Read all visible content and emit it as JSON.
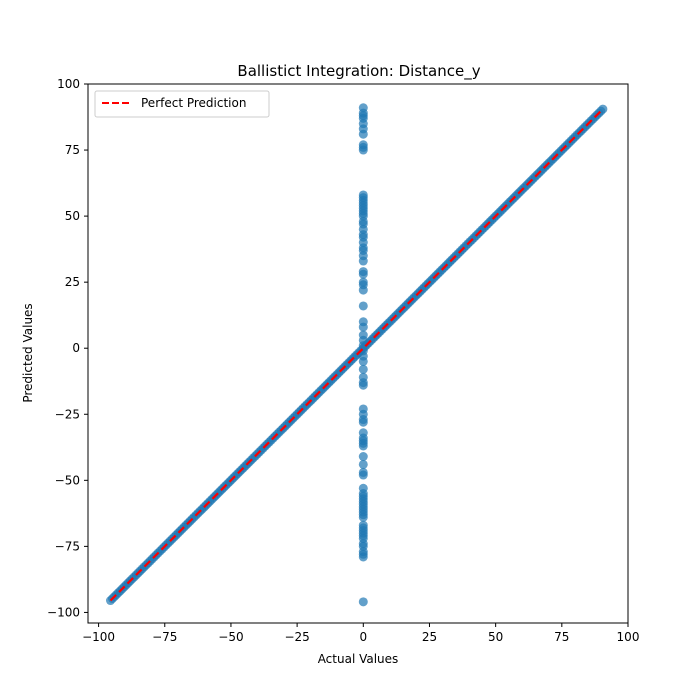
{
  "chart_data": {
    "type": "scatter",
    "title": "Ballistict Integration: Distance_y",
    "xlabel": "Actual Values",
    "ylabel": "Predicted Values",
    "xlim": [
      -104,
      100
    ],
    "ylim": [
      -104,
      100
    ],
    "xticks": [
      -100,
      -75,
      -50,
      -25,
      0,
      25,
      50,
      75,
      100
    ],
    "yticks": [
      -100,
      -75,
      -50,
      -25,
      0,
      25,
      50,
      75,
      100
    ],
    "xtick_labels": [
      "−100",
      "−75",
      "−50",
      "−25",
      "0",
      "25",
      "50",
      "75",
      "100"
    ],
    "ytick_labels": [
      "−100",
      "−75",
      "−50",
      "−25",
      "0",
      "25",
      "50",
      "75",
      "100"
    ],
    "grid": false,
    "legend": {
      "position": "top-left",
      "entries": [
        "Perfect Prediction"
      ]
    },
    "colors": {
      "points": "#1f77b4",
      "reference_line": "#ff0000"
    },
    "series": [
      {
        "kind": "scatter",
        "diagonal": {
          "from": -95.5,
          "to": 90.5,
          "step": 0.75
        },
        "vertical_points": {
          "x": 0,
          "y": [
            91,
            89,
            88,
            87,
            85,
            83,
            81,
            77,
            76,
            75,
            58,
            57,
            56,
            55,
            54,
            53,
            52,
            51,
            50,
            48,
            47,
            45,
            43,
            42,
            40,
            38,
            37,
            35,
            33,
            29,
            28,
            25,
            24,
            22,
            16,
            10,
            8,
            5,
            3,
            1,
            -1,
            -3,
            -5,
            -8,
            -11,
            -13,
            -14,
            -23,
            -25,
            -27,
            -28,
            -32,
            -34,
            -35,
            -36,
            -37,
            -41,
            -44,
            -47,
            -48,
            -53,
            -55,
            -56,
            -57,
            -58,
            -59,
            -60,
            -61,
            -62,
            -63,
            -64,
            -67,
            -68,
            -69,
            -70,
            -71,
            -72,
            -74,
            -75,
            -77,
            -78,
            -79,
            -96
          ]
        }
      },
      {
        "kind": "line",
        "name": "Perfect Prediction",
        "x": [
          -95.5,
          90.5
        ],
        "y": [
          -95.5,
          90.5
        ]
      }
    ]
  }
}
